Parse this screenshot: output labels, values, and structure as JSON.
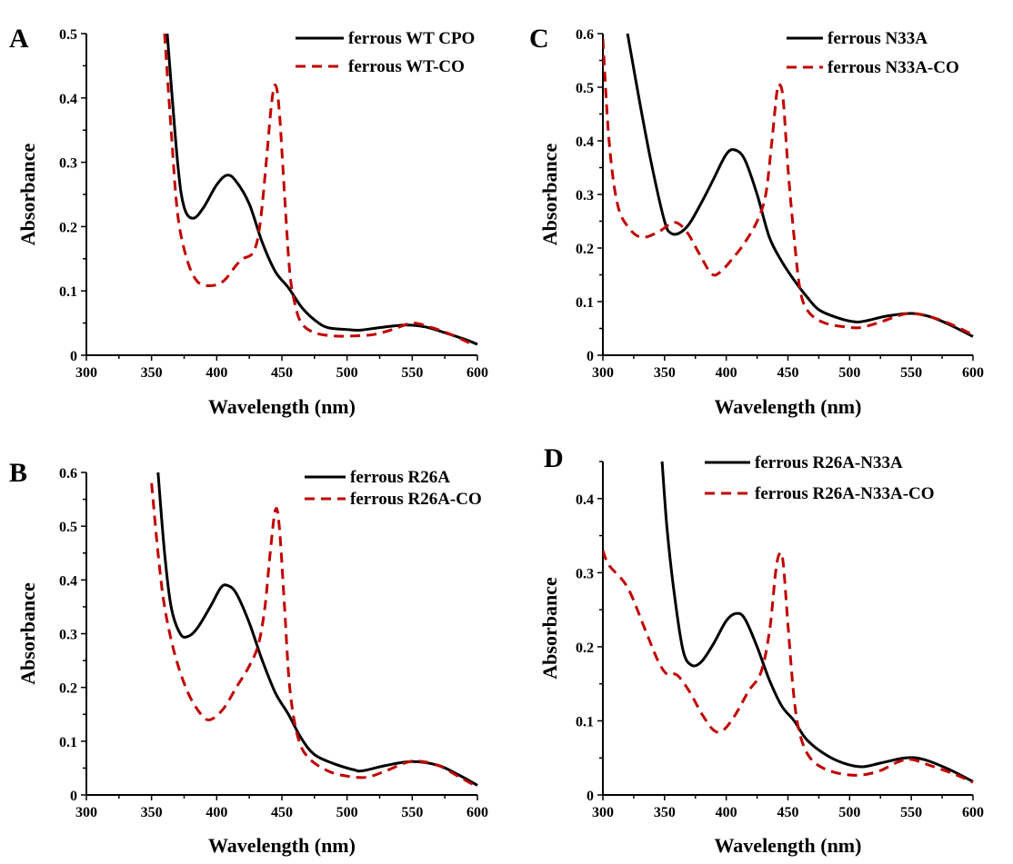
{
  "colors": {
    "solid": "#000000",
    "dashed": "#c00000"
  },
  "chart_data": [
    {
      "panel": "A",
      "type": "line",
      "xlabel": "Wavelength (nm)",
      "ylabel": "Absorbance",
      "xlim": [
        300,
        600
      ],
      "ylim": [
        0,
        0.5
      ],
      "xticks": [
        300,
        350,
        400,
        450,
        500,
        550,
        600
      ],
      "yticks": [
        0,
        0.1,
        0.2,
        0.3,
        0.4,
        0.5
      ],
      "ytick_labels": [
        "0",
        "0.1",
        "0.2",
        "0.3",
        "0.4",
        "0.5"
      ],
      "legend_position": "top-right",
      "series": [
        {
          "name": "ferrous WT CPO",
          "style": "solid",
          "x": [
            362,
            370,
            375,
            382,
            390,
            400,
            408,
            415,
            425,
            435,
            445,
            455,
            465,
            475,
            485,
            500,
            510,
            525,
            545,
            560,
            575,
            590,
            600
          ],
          "y": [
            0.5,
            0.3,
            0.23,
            0.213,
            0.23,
            0.265,
            0.28,
            0.27,
            0.235,
            0.175,
            0.13,
            0.105,
            0.075,
            0.055,
            0.043,
            0.04,
            0.039,
            0.043,
            0.047,
            0.044,
            0.035,
            0.025,
            0.017
          ]
        },
        {
          "name": "ferrous WT-CO",
          "style": "dashed",
          "x": [
            360,
            365,
            370,
            377,
            385,
            395,
            405,
            415,
            420,
            428,
            433,
            438,
            442,
            445,
            448,
            452,
            456,
            460,
            465,
            475,
            490,
            505,
            520,
            535,
            550,
            565,
            580,
            595
          ],
          "y": [
            0.5,
            0.35,
            0.22,
            0.15,
            0.115,
            0.108,
            0.115,
            0.14,
            0.15,
            0.16,
            0.2,
            0.3,
            0.39,
            0.42,
            0.38,
            0.25,
            0.13,
            0.08,
            0.05,
            0.035,
            0.03,
            0.03,
            0.032,
            0.04,
            0.05,
            0.043,
            0.032,
            0.018
          ]
        }
      ]
    },
    {
      "panel": "C",
      "type": "line",
      "xlabel": "Wavelength (nm)",
      "ylabel": "Absorbance",
      "xlim": [
        300,
        600
      ],
      "ylim": [
        0,
        0.6
      ],
      "xticks": [
        300,
        350,
        400,
        450,
        500,
        550,
        600
      ],
      "yticks": [
        0,
        0.1,
        0.2,
        0.3,
        0.4,
        0.5,
        0.6
      ],
      "ytick_labels": [
        "0",
        "0.1",
        "0.2",
        "0.3",
        "0.4",
        "0.5",
        "0.6"
      ],
      "legend_position": "top-right",
      "series": [
        {
          "name": "ferrous N33A",
          "style": "solid",
          "x": [
            320,
            330,
            340,
            350,
            355,
            362,
            370,
            380,
            390,
            400,
            407,
            415,
            425,
            435,
            445,
            455,
            465,
            475,
            490,
            505,
            515,
            530,
            550,
            565,
            580,
            600
          ],
          "y": [
            0.6,
            0.47,
            0.35,
            0.25,
            0.228,
            0.228,
            0.245,
            0.285,
            0.33,
            0.375,
            0.383,
            0.365,
            0.3,
            0.22,
            0.175,
            0.14,
            0.11,
            0.085,
            0.07,
            0.062,
            0.065,
            0.073,
            0.078,
            0.072,
            0.058,
            0.035
          ]
        },
        {
          "name": "ferrous N33A-CO",
          "style": "dashed",
          "x": [
            300,
            305,
            312,
            322,
            332,
            345,
            358,
            368,
            378,
            388,
            395,
            405,
            415,
            425,
            432,
            437,
            441,
            443,
            446,
            450,
            455,
            460,
            467,
            480,
            500,
            510,
            525,
            545,
            560,
            580,
            600
          ],
          "y": [
            0.59,
            0.4,
            0.28,
            0.235,
            0.22,
            0.23,
            0.248,
            0.23,
            0.19,
            0.152,
            0.155,
            0.18,
            0.21,
            0.25,
            0.3,
            0.4,
            0.49,
            0.505,
            0.48,
            0.35,
            0.22,
            0.12,
            0.08,
            0.06,
            0.052,
            0.052,
            0.062,
            0.077,
            0.075,
            0.06,
            0.038
          ]
        }
      ]
    },
    {
      "panel": "B",
      "type": "line",
      "xlabel": "Wavelength (nm)",
      "ylabel": "Absorbance",
      "xlim": [
        300,
        600
      ],
      "ylim": [
        0,
        0.6
      ],
      "xticks": [
        300,
        350,
        400,
        450,
        500,
        550,
        600
      ],
      "yticks": [
        0,
        0.1,
        0.2,
        0.3,
        0.4,
        0.5,
        0.6
      ],
      "ytick_labels": [
        "0",
        "0.1",
        "0.2",
        "0.3",
        "0.4",
        "0.5",
        "0.6"
      ],
      "legend_position": "top-right",
      "series": [
        {
          "name": "ferrous R26A",
          "style": "solid",
          "x": [
            355,
            360,
            365,
            372,
            378,
            385,
            395,
            403,
            408,
            415,
            425,
            435,
            445,
            455,
            465,
            475,
            490,
            505,
            512,
            530,
            550,
            570,
            585,
            600
          ],
          "y": [
            0.6,
            0.45,
            0.35,
            0.3,
            0.295,
            0.31,
            0.35,
            0.385,
            0.39,
            0.375,
            0.32,
            0.25,
            0.19,
            0.15,
            0.105,
            0.075,
            0.058,
            0.047,
            0.045,
            0.055,
            0.062,
            0.055,
            0.038,
            0.018
          ]
        },
        {
          "name": "ferrous R26A-CO",
          "style": "dashed",
          "x": [
            350,
            355,
            360,
            368,
            378,
            388,
            395,
            405,
            415,
            425,
            432,
            437,
            441,
            445,
            448,
            452,
            456,
            462,
            470,
            485,
            500,
            515,
            530,
            545,
            555,
            570,
            585,
            600
          ],
          "y": [
            0.58,
            0.45,
            0.35,
            0.26,
            0.19,
            0.15,
            0.14,
            0.16,
            0.2,
            0.24,
            0.28,
            0.35,
            0.45,
            0.53,
            0.5,
            0.35,
            0.2,
            0.11,
            0.07,
            0.045,
            0.035,
            0.033,
            0.045,
            0.06,
            0.063,
            0.055,
            0.035,
            0.015
          ]
        }
      ]
    },
    {
      "panel": "D",
      "type": "line",
      "xlabel": "Wavelength (nm)",
      "ylabel": "Absorbance",
      "xlim": [
        300,
        600
      ],
      "ylim": [
        0,
        0.45
      ],
      "xticks": [
        300,
        350,
        400,
        450,
        500,
        550,
        600
      ],
      "yticks": [
        0,
        0.1,
        0.2,
        0.3,
        0.4
      ],
      "ytick_labels": [
        "0",
        "0.1",
        "0.2",
        "0.3",
        "0.4"
      ],
      "legend_position": "top-right",
      "series": [
        {
          "name": "ferrous R26A-N33A",
          "style": "solid",
          "x": [
            348,
            352,
            358,
            365,
            372,
            380,
            390,
            400,
            408,
            415,
            425,
            435,
            445,
            455,
            465,
            480,
            495,
            510,
            525,
            545,
            560,
            580,
            600
          ],
          "y": [
            0.45,
            0.36,
            0.27,
            0.195,
            0.175,
            0.18,
            0.205,
            0.235,
            0.245,
            0.238,
            0.2,
            0.155,
            0.12,
            0.1,
            0.075,
            0.055,
            0.043,
            0.038,
            0.043,
            0.05,
            0.048,
            0.035,
            0.018
          ]
        },
        {
          "name": "ferrous R26A-N33A-CO",
          "style": "dashed",
          "x": [
            300,
            305,
            320,
            335,
            345,
            352,
            360,
            370,
            380,
            390,
            398,
            408,
            418,
            428,
            435,
            440,
            443,
            446,
            450,
            455,
            460,
            468,
            480,
            495,
            510,
            525,
            540,
            550,
            565,
            585,
            600
          ],
          "y": [
            0.33,
            0.31,
            0.28,
            0.22,
            0.18,
            0.163,
            0.162,
            0.14,
            0.11,
            0.087,
            0.088,
            0.11,
            0.14,
            0.165,
            0.22,
            0.3,
            0.325,
            0.315,
            0.23,
            0.13,
            0.08,
            0.05,
            0.035,
            0.028,
            0.027,
            0.033,
            0.045,
            0.048,
            0.04,
            0.028,
            0.017
          ]
        }
      ]
    }
  ]
}
